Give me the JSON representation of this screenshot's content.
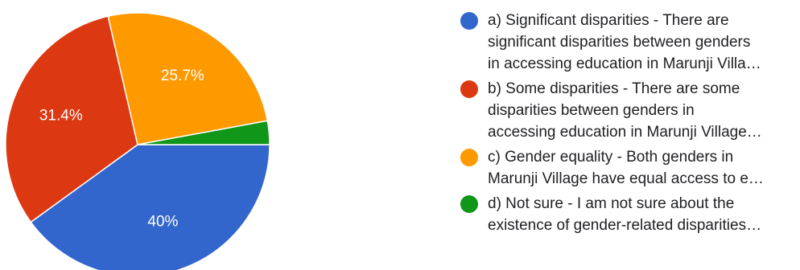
{
  "chart_data": {
    "type": "pie",
    "title": "",
    "legend_position": "right",
    "start_angle_deg": 90,
    "direction": "clockwise",
    "slices": [
      {
        "key": "a",
        "value": 40,
        "label": "40%",
        "color": "#3366cc",
        "legend_lines": [
          "a) Significant disparities - There are",
          "significant disparities between genders",
          "in accessing education in Marunji Villa…"
        ]
      },
      {
        "key": "b",
        "value": 31.4,
        "label": "31.4%",
        "color": "#dc3912",
        "legend_lines": [
          "b) Some disparities - There are some",
          "disparities between genders in",
          "accessing education in Marunji Village…"
        ]
      },
      {
        "key": "c",
        "value": 25.7,
        "label": "25.7%",
        "color": "#ff9900",
        "legend_lines": [
          "c) Gender equality - Both genders in",
          "Marunji Village have equal access to e…"
        ]
      },
      {
        "key": "d",
        "value": 2.9,
        "label": "",
        "color": "#109618",
        "legend_lines": [
          "d) Not sure - I am not sure about the",
          "existence of gender-related disparities…"
        ]
      }
    ]
  }
}
